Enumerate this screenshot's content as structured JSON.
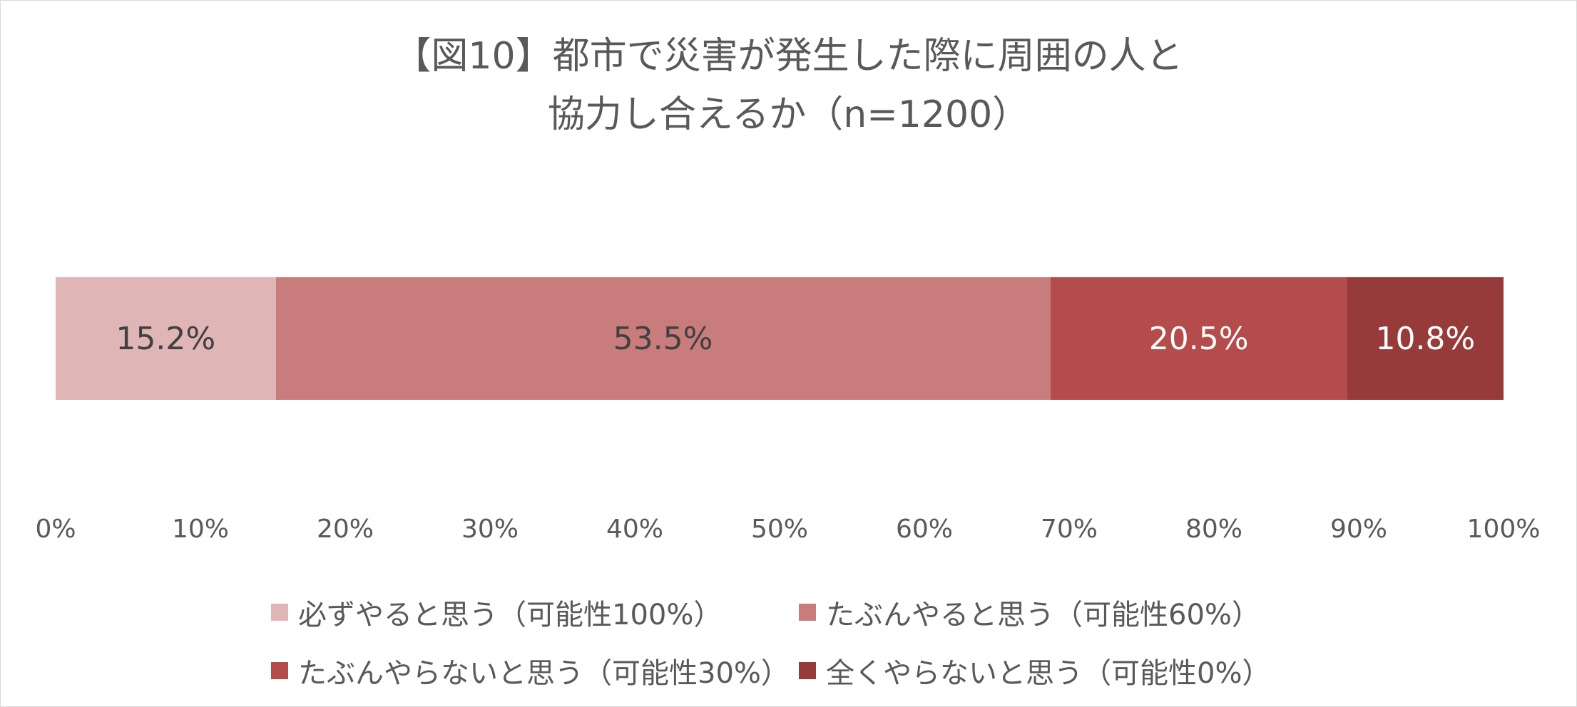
{
  "chart_data": {
    "type": "bar",
    "orientation": "horizontal",
    "stacked": "percent",
    "title": "【図10】都市で災害が発生した際に周囲の人と協力し合えるか（n=1200）",
    "title_lines": [
      "【図10】都市で災害が発生した際に周囲の人と",
      "協力し合えるか（n=1200）"
    ],
    "categories": [
      ""
    ],
    "series": [
      {
        "name": "必ずやると思う（可能性100%）",
        "values": [
          15.2
        ],
        "label": "15.2%",
        "color": "#dfb5b5",
        "label_color": "#404040"
      },
      {
        "name": "たぶんやると思う（可能性60%）",
        "values": [
          53.5
        ],
        "label": "53.5%",
        "color": "#c97c7c",
        "label_color": "#404040"
      },
      {
        "name": "たぶんやらないと思う（可能性30%）",
        "values": [
          20.5
        ],
        "label": "20.5%",
        "color": "#b34c4a",
        "label_color": "#ffffff"
      },
      {
        "name": "全くやらないと思う（可能性0%）",
        "values": [
          10.8
        ],
        "label": "10.8%",
        "color": "#973b3a",
        "label_color": "#ffffff"
      }
    ],
    "xlabel": "",
    "ylabel": "",
    "xlim": [
      0,
      100
    ],
    "x_ticks": [
      "0%",
      "10%",
      "20%",
      "30%",
      "40%",
      "50%",
      "60%",
      "70%",
      "80%",
      "90%",
      "100%"
    ],
    "grid": false,
    "legend_position": "bottom"
  }
}
